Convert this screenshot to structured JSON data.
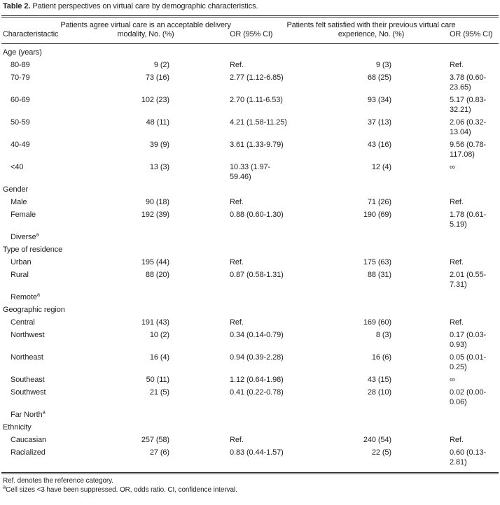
{
  "colors": {
    "background": "#ffffff",
    "text": "#1e1e1e",
    "rule": "#2e2e2e"
  },
  "title": {
    "number": "Table 2.",
    "caption": "Patient perspectives on virtual care by demographic characteristics."
  },
  "columns": [
    "Characteristactic",
    "Patients agree virtual care is an acceptable delivery modality, No. (%)",
    "OR (95% CI)",
    "Patients felt satisfied with their previous virtual care experience, No. (%)",
    "OR (95% CI)"
  ],
  "sections": [
    {
      "label": "Age (years)",
      "rows": [
        {
          "label": "80-89",
          "n1": "9 (2)",
          "or1": "Ref.",
          "n2": "9 (3)",
          "or2": "Ref."
        },
        {
          "label": "70-79",
          "n1": "73 (16)",
          "or1": "2.77 (1.12-6.85)",
          "n2": "68 (25)",
          "or2": "3.78 (0.60-23.65)"
        },
        {
          "label": "60-69",
          "n1": "102 (23)",
          "or1": "2.70 (1.11-6.53)",
          "n2": "93 (34)",
          "or2": "5.17 (0.83-32.21)"
        },
        {
          "label": "50-59",
          "n1": "48 (11)",
          "or1": "4.21 (1.58-11.25)",
          "n2": "37 (13)",
          "or2": "2.06 (0.32-13.04)"
        },
        {
          "label": "40-49",
          "n1": "39 (9)",
          "or1": "3.61 (1.33-9.79)",
          "n2": "43 (16)",
          "or2": "9.56 (0.78-117.08)"
        },
        {
          "label": "<40",
          "n1": "13 (3)",
          "or1": "10.33 (1.97-59.46)",
          "n2": "12 (4)",
          "or2": "∞"
        }
      ]
    },
    {
      "label": "Gender",
      "rows": [
        {
          "label": "Male",
          "n1": "90 (18)",
          "or1": "Ref.",
          "n2": "71 (26)",
          "or2": "Ref."
        },
        {
          "label": "Female",
          "n1": "192 (39)",
          "or1": "0.88 (0.60-1.30)",
          "n2": "190 (69)",
          "or2": "1.78 (0.61-5.19)"
        },
        {
          "label": "Diverse",
          "sup": "a",
          "n1": "",
          "or1": "",
          "n2": "",
          "or2": ""
        }
      ]
    },
    {
      "label": "Type of residence",
      "rows": [
        {
          "label": "Urban",
          "n1": "195 (44)",
          "or1": "Ref.",
          "n2": "175 (63)",
          "or2": "Ref."
        },
        {
          "label": "Rural",
          "n1": "88 (20)",
          "or1": "0.87 (0.58-1.31)",
          "n2": "88 (31)",
          "or2": "2.01 (0.55-7.31)"
        },
        {
          "label": "Remote",
          "sup": "a",
          "n1": "",
          "or1": "",
          "n2": "",
          "or2": ""
        }
      ]
    },
    {
      "label": "Geographic region",
      "rows": [
        {
          "label": "Central",
          "n1": "191 (43)",
          "or1": "Ref.",
          "n2": "169 (60)",
          "or2": "Ref."
        },
        {
          "label": "Northwest",
          "n1": "10 (2)",
          "or1": "0.34 (0.14-0.79)",
          "n2": "8 (3)",
          "or2": "0.17 (0.03-0.93)"
        },
        {
          "label": "Northeast",
          "n1": "16 (4)",
          "or1": "0.94 (0.39-2.28)",
          "n2": "16 (6)",
          "or2": "0.05 (0.01-0.25)"
        },
        {
          "label": "Southeast",
          "n1": "50 (11)",
          "or1": "1.12 (0.64-1.98)",
          "n2": "43 (15)",
          "or2": "∞"
        },
        {
          "label": "Southwest",
          "n1": "21 (5)",
          "or1": "0.41 (0.22-0.78)",
          "n2": "28 (10)",
          "or2": "0.02 (0.00-0.06)"
        },
        {
          "label": "Far North",
          "sup": "a",
          "n1": "",
          "or1": "",
          "n2": "",
          "or2": ""
        }
      ]
    },
    {
      "label": "Ethnicity",
      "rows": [
        {
          "label": "Caucasian",
          "n1": "257 (58)",
          "or1": "Ref.",
          "n2": "240 (54)",
          "or2": "Ref."
        },
        {
          "label": "Racialized",
          "n1": "27 (6)",
          "or1": "0.83 (0.44-1.57)",
          "n2": "22 (5)",
          "or2": "0.60 (0.13-2.81)"
        }
      ]
    }
  ],
  "footnotes": [
    {
      "sup": "",
      "text": "Ref. denotes the reference category."
    },
    {
      "sup": "a",
      "text": "Cell sizes <3 have been suppressed. OR, odds ratio. CI, confidence interval."
    }
  ]
}
